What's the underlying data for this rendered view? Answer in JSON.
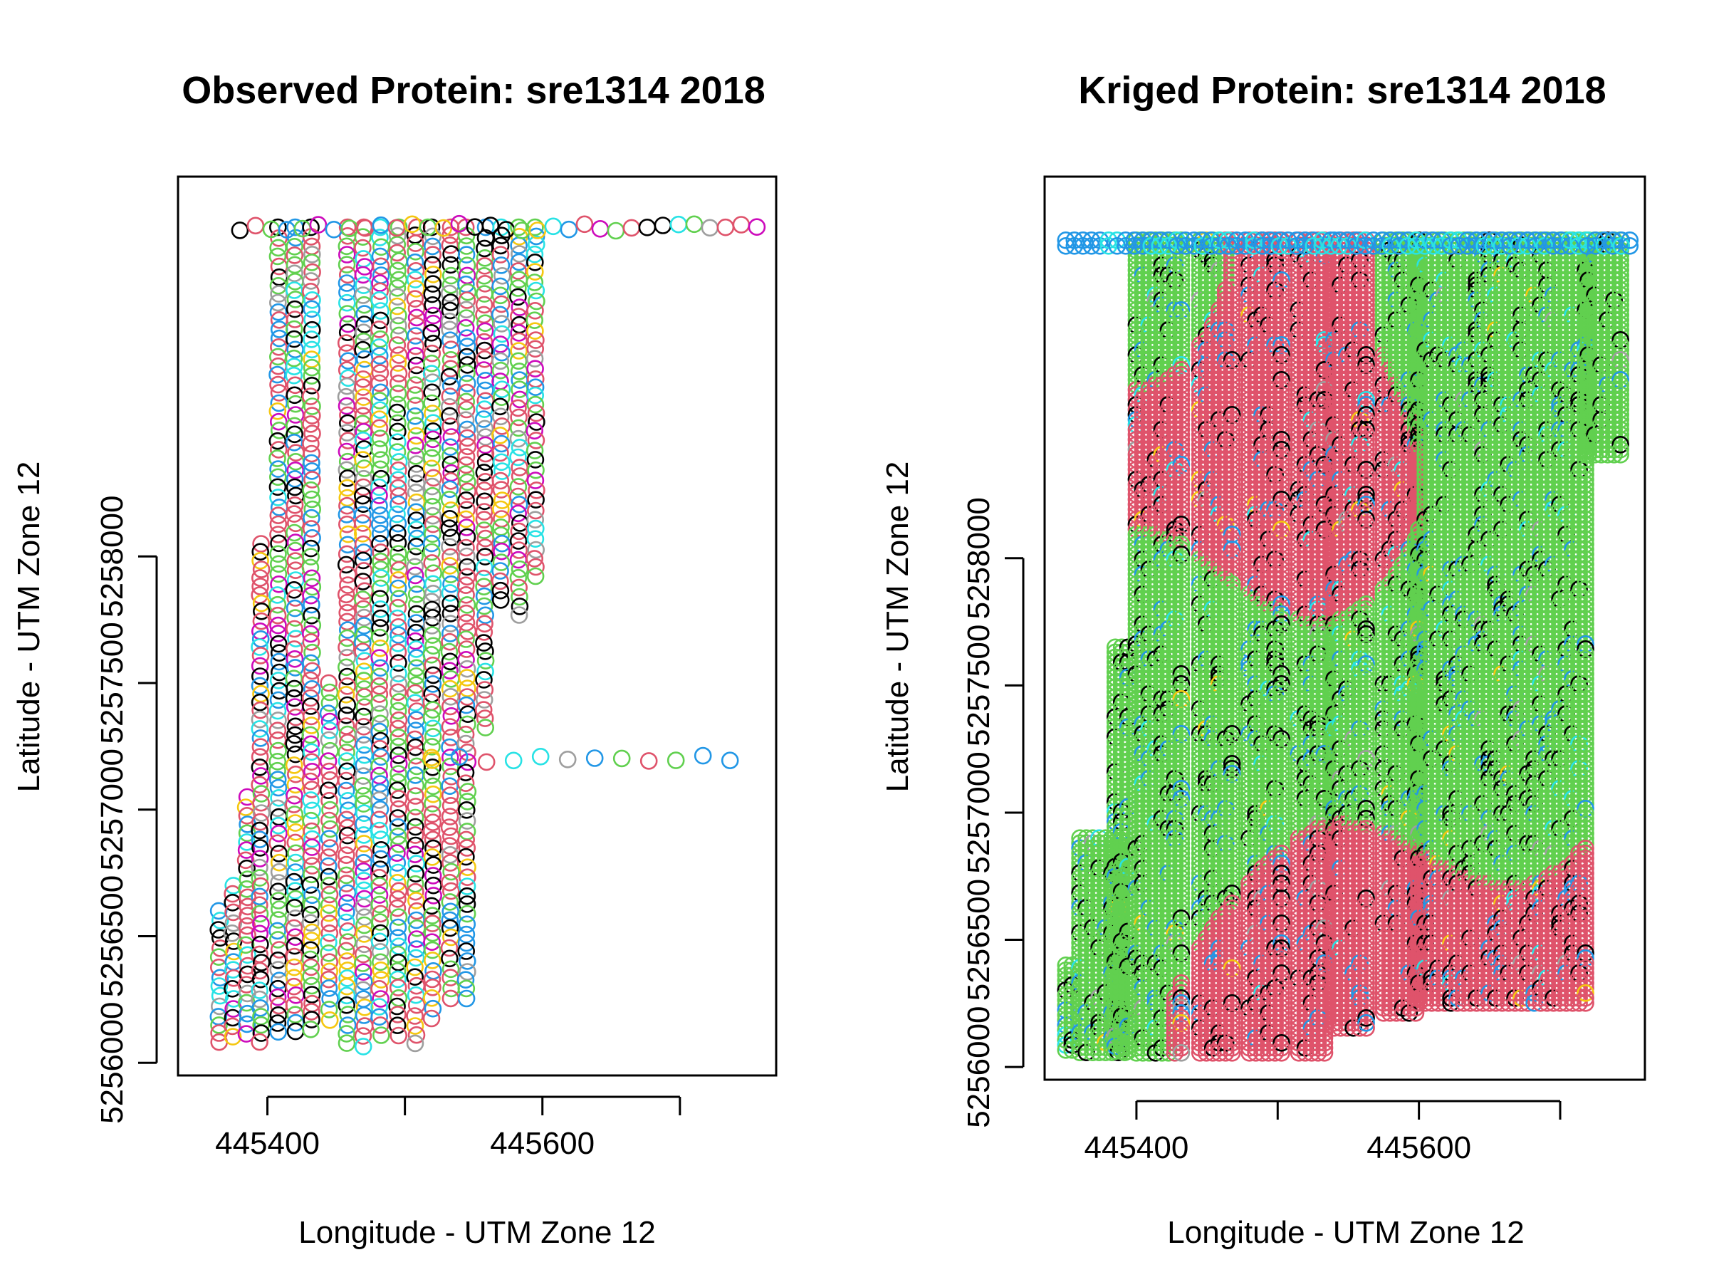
{
  "figure": {
    "background": "#ffffff"
  },
  "palette": {
    "black": "#000000",
    "red": "#DF536B",
    "green": "#61D04F",
    "blue": "#2297E6",
    "cyan": "#28E2E5",
    "magenta": "#CD0BBC",
    "yellow": "#F5C710",
    "gray": "#9E9E9E"
  },
  "chart_data": [
    {
      "type": "scatter",
      "marker": "open-circle",
      "title": "Observed Protein: sre1314 2018",
      "xlabel": "Longitude - UTM Zone 12",
      "ylabel": "Latitude - UTM Zone 12",
      "xlim": [
        445335,
        445770
      ],
      "ylim": [
        5255950,
        5259500
      ],
      "xticks": [
        {
          "value": 445400,
          "label": "445400"
        },
        {
          "value": 445500,
          "label": ""
        },
        {
          "value": 445600,
          "label": "445600"
        },
        {
          "value": 445700,
          "label": ""
        }
      ],
      "yticks": [
        {
          "value": 5256000,
          "label": "5256000"
        },
        {
          "value": 5256500,
          "label": "5256500"
        },
        {
          "value": 5257000,
          "label": "5257000"
        },
        {
          "value": 5257500,
          "label": "5257500"
        },
        {
          "value": 5258000,
          "label": "5258000"
        }
      ],
      "grid": false,
      "colors_present": [
        "black",
        "red",
        "green",
        "blue",
        "cyan",
        "magenta",
        "yellow",
        "gray"
      ],
      "passes": [
        {
          "x": 445365,
          "y_from": 5256050,
          "y_to": 5256600
        },
        {
          "x": 445375,
          "y_from": 5256100,
          "y_to": 5256700
        },
        {
          "x": 445385,
          "y_from": 5256100,
          "y_to": 5257050
        },
        {
          "x": 445395,
          "y_from": 5256050,
          "y_to": 5258050
        },
        {
          "x": 445408,
          "y_from": 5256100,
          "y_to": 5259300
        },
        {
          "x": 445420,
          "y_from": 5256100,
          "y_to": 5259300
        },
        {
          "x": 445432,
          "y_from": 5256100,
          "y_to": 5259300
        },
        {
          "x": 445445,
          "y_from": 5256150,
          "y_to": 5257500
        },
        {
          "x": 445458,
          "y_from": 5256050,
          "y_to": 5259300
        },
        {
          "x": 445470,
          "y_from": 5256050,
          "y_to": 5259300
        },
        {
          "x": 445482,
          "y_from": 5256100,
          "y_to": 5259300
        },
        {
          "x": 445495,
          "y_from": 5256100,
          "y_to": 5259300
        },
        {
          "x": 445508,
          "y_from": 5256050,
          "y_to": 5259300
        },
        {
          "x": 445520,
          "y_from": 5256150,
          "y_to": 5259300
        },
        {
          "x": 445533,
          "y_from": 5256250,
          "y_to": 5259300
        },
        {
          "x": 445545,
          "y_from": 5256250,
          "y_to": 5259300
        },
        {
          "x": 445558,
          "y_from": 5257300,
          "y_to": 5259300
        },
        {
          "x": 445570,
          "y_from": 5257800,
          "y_to": 5259300
        },
        {
          "x": 445583,
          "y_from": 5257750,
          "y_to": 5259300
        },
        {
          "x": 445595,
          "y_from": 5257900,
          "y_to": 5259300
        }
      ],
      "rows": [
        {
          "y": 5259300,
          "x_from": 445380,
          "x_to": 445760
        },
        {
          "y": 5257200,
          "x_from": 445520,
          "x_to": 445740
        }
      ]
    },
    {
      "type": "scatter",
      "marker": "open-circle",
      "title": "Kriged Protein: sre1314 2018",
      "xlabel": "Longitude - UTM Zone 12",
      "ylabel": "Latitude - UTM Zone 12",
      "xlim": [
        445335,
        445760
      ],
      "ylim": [
        5255950,
        5259500
      ],
      "xticks": [
        {
          "value": 445400,
          "label": "445400"
        },
        {
          "value": 445500,
          "label": ""
        },
        {
          "value": 445600,
          "label": "445600"
        },
        {
          "value": 445700,
          "label": ""
        }
      ],
      "yticks": [
        {
          "value": 5256000,
          "label": "5256000"
        },
        {
          "value": 5256500,
          "label": "5256500"
        },
        {
          "value": 5257000,
          "label": "5257000"
        },
        {
          "value": 5257500,
          "label": "5257500"
        },
        {
          "value": 5258000,
          "label": "5258000"
        }
      ],
      "grid": false,
      "dominant_colors": [
        "red",
        "green"
      ],
      "colors_present": [
        "red",
        "green",
        "black",
        "blue",
        "cyan",
        "yellow",
        "gray"
      ],
      "strips": [
        {
          "x_from": 445350,
          "x_to": 445355,
          "y_from": 5256050,
          "y_to": 5256400
        },
        {
          "x_from": 445360,
          "x_to": 445395,
          "y_from": 5256050,
          "y_to": 5256900
        },
        {
          "x_from": 445385,
          "x_to": 445395,
          "y_from": 5256050,
          "y_to": 5257650
        },
        {
          "x_from": 445400,
          "x_to": 445435,
          "y_from": 5256050,
          "y_to": 5259250
        },
        {
          "x_from": 445445,
          "x_to": 445470,
          "y_from": 5256050,
          "y_to": 5259250
        },
        {
          "x_from": 445480,
          "x_to": 445505,
          "y_from": 5256050,
          "y_to": 5259250
        },
        {
          "x_from": 445515,
          "x_to": 445535,
          "y_from": 5256050,
          "y_to": 5259250
        },
        {
          "x_from": 445540,
          "x_to": 445565,
          "y_from": 5256150,
          "y_to": 5259250
        },
        {
          "x_from": 445575,
          "x_to": 445600,
          "y_from": 5256200,
          "y_to": 5259250
        },
        {
          "x_from": 445600,
          "x_to": 445720,
          "y_from": 5256250,
          "y_to": 5259250
        },
        {
          "x_from": 445720,
          "x_to": 445745,
          "y_from": 5258400,
          "y_to": 5259250
        }
      ],
      "top_row": {
        "y": 5259250,
        "x_from": 445350,
        "x_to": 445750
      }
    }
  ]
}
